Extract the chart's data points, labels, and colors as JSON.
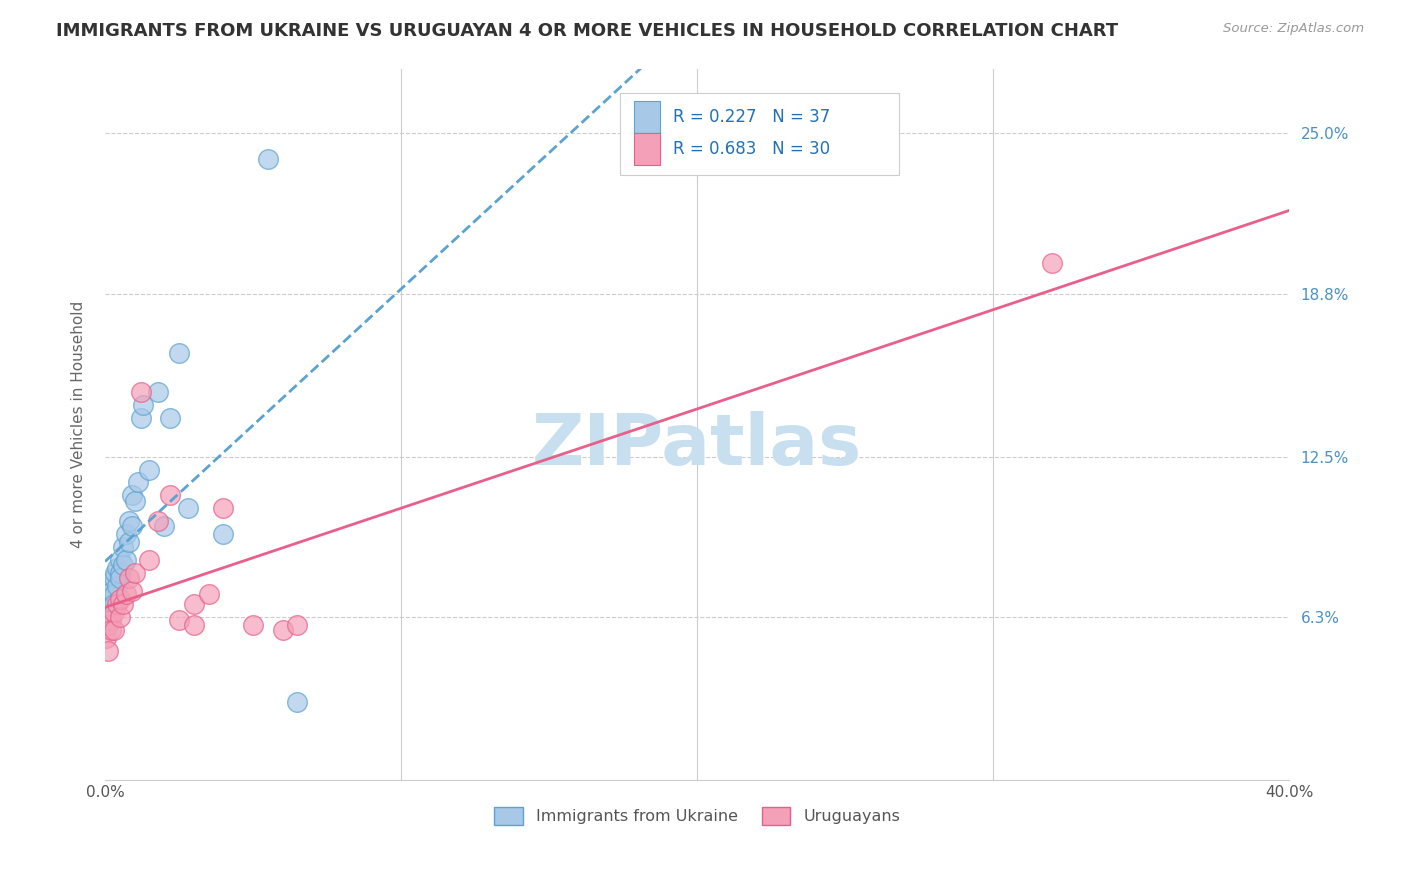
{
  "title": "IMMIGRANTS FROM UKRAINE VS URUGUAYAN 4 OR MORE VEHICLES IN HOUSEHOLD CORRELATION CHART",
  "source": "Source: ZipAtlas.com",
  "ylabel": "4 or more Vehicles in Household",
  "ytick_labels": [
    "6.3%",
    "12.5%",
    "18.8%",
    "25.0%"
  ],
  "ytick_values": [
    0.063,
    0.125,
    0.188,
    0.25
  ],
  "xlim": [
    0.0,
    0.4
  ],
  "ylim": [
    0.0,
    0.275
  ],
  "watermark": "ZIPatlas",
  "color_ukraine": "#a8c8e8",
  "color_uruguay": "#f4a0b8",
  "trendline_ukraine_color": "#5ba3d0",
  "trendline_uruguay_color": "#e8608a",
  "ukraine_scatter_x": [
    0.0005,
    0.001,
    0.001,
    0.0015,
    0.002,
    0.002,
    0.0025,
    0.003,
    0.003,
    0.003,
    0.0035,
    0.004,
    0.004,
    0.005,
    0.005,
    0.005,
    0.006,
    0.006,
    0.007,
    0.007,
    0.008,
    0.008,
    0.009,
    0.009,
    0.01,
    0.011,
    0.012,
    0.013,
    0.015,
    0.018,
    0.02,
    0.022,
    0.025,
    0.028,
    0.04,
    0.055,
    0.065
  ],
  "ukraine_scatter_y": [
    0.068,
    0.062,
    0.072,
    0.07,
    0.075,
    0.065,
    0.073,
    0.078,
    0.072,
    0.068,
    0.08,
    0.082,
    0.075,
    0.085,
    0.08,
    0.078,
    0.09,
    0.083,
    0.095,
    0.085,
    0.1,
    0.092,
    0.11,
    0.098,
    0.108,
    0.115,
    0.14,
    0.145,
    0.12,
    0.15,
    0.098,
    0.14,
    0.165,
    0.105,
    0.095,
    0.24,
    0.03
  ],
  "uruguay_scatter_x": [
    0.0005,
    0.001,
    0.001,
    0.002,
    0.002,
    0.003,
    0.003,
    0.004,
    0.005,
    0.005,
    0.006,
    0.007,
    0.008,
    0.009,
    0.01,
    0.012,
    0.015,
    0.018,
    0.022,
    0.025,
    0.03,
    0.03,
    0.035,
    0.04,
    0.05,
    0.06,
    0.065,
    0.32
  ],
  "uruguay_scatter_y": [
    0.055,
    0.06,
    0.05,
    0.062,
    0.058,
    0.058,
    0.065,
    0.068,
    0.063,
    0.07,
    0.068,
    0.072,
    0.078,
    0.073,
    0.08,
    0.15,
    0.085,
    0.1,
    0.11,
    0.062,
    0.068,
    0.06,
    0.072,
    0.105,
    0.06,
    0.058,
    0.06,
    0.2
  ],
  "background_color": "#ffffff",
  "grid_color": "#cccccc",
  "title_fontsize": 13,
  "label_fontsize": 11,
  "tick_fontsize": 11,
  "watermark_color": "#c8dff0",
  "watermark_fontsize": 52
}
